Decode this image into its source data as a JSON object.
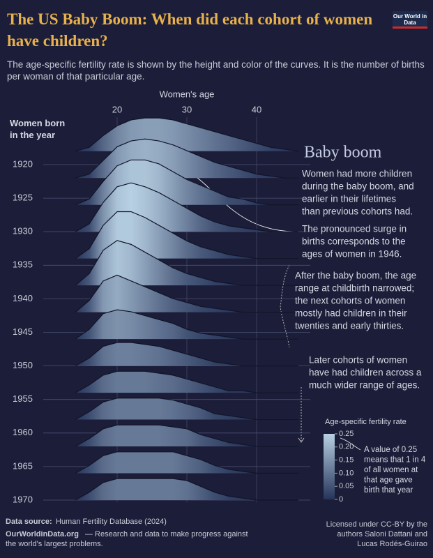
{
  "chart_data": {
    "type": "ridgeline",
    "title": "The US Baby Boom: When did each cohort of women have children?",
    "subtitle": "The age-specific fertility rate is shown by the height and color of the curves. It is the number of births per woman of that particular age.",
    "logo": "Our World in Data",
    "x_label": "Women's age",
    "y_label": "Women born in the year",
    "x": [
      14,
      16,
      18,
      20,
      22,
      24,
      26,
      28,
      30,
      32,
      34,
      36,
      38,
      40,
      42,
      44,
      46
    ],
    "xlim": [
      10,
      46
    ],
    "xticks": [
      20,
      30,
      40
    ],
    "ylim": [
      1920,
      1970
    ],
    "yticks": [
      1920,
      1925,
      1930,
      1935,
      1940,
      1945,
      1950,
      1955,
      1960,
      1965,
      1970
    ],
    "series": [
      {
        "cohort": 1918,
        "values": [
          0,
          0.02,
          0.08,
          0.13,
          0.16,
          0.17,
          0.17,
          0.16,
          0.14,
          0.12,
          0.1,
          0.08,
          0.06,
          0.04,
          0.02,
          0.01,
          0
        ]
      },
      {
        "cohort": 1922,
        "values": [
          0,
          0.02,
          0.09,
          0.16,
          0.19,
          0.2,
          0.19,
          0.17,
          0.14,
          0.11,
          0.08,
          0.06,
          0.04,
          0.02,
          0.01,
          0,
          0
        ]
      },
      {
        "cohort": 1926,
        "values": [
          0,
          0.03,
          0.12,
          0.2,
          0.23,
          0.23,
          0.21,
          0.17,
          0.13,
          0.1,
          0.07,
          0.04,
          0.03,
          0.01,
          0,
          0,
          0
        ]
      },
      {
        "cohort": 1930,
        "values": [
          0,
          0.04,
          0.15,
          0.23,
          0.25,
          0.23,
          0.2,
          0.16,
          0.12,
          0.08,
          0.05,
          0.03,
          0.02,
          0.01,
          0,
          0,
          0
        ]
      },
      {
        "cohort": 1934,
        "values": [
          0,
          0.05,
          0.17,
          0.24,
          0.24,
          0.21,
          0.17,
          0.13,
          0.09,
          0.06,
          0.04,
          0.02,
          0.01,
          0,
          0,
          0,
          0
        ]
      },
      {
        "cohort": 1938,
        "values": [
          0,
          0.06,
          0.18,
          0.23,
          0.21,
          0.17,
          0.13,
          0.09,
          0.06,
          0.04,
          0.02,
          0.01,
          0,
          0,
          0,
          0,
          0
        ]
      },
      {
        "cohort": 1942,
        "values": [
          0,
          0.06,
          0.16,
          0.19,
          0.16,
          0.13,
          0.1,
          0.07,
          0.05,
          0.03,
          0.02,
          0.01,
          0,
          0,
          0,
          0,
          0
        ]
      },
      {
        "cohort": 1946,
        "values": [
          0,
          0.05,
          0.13,
          0.15,
          0.14,
          0.12,
          0.1,
          0.08,
          0.05,
          0.03,
          0.02,
          0.01,
          0,
          0,
          0,
          0,
          0
        ]
      },
      {
        "cohort": 1950,
        "values": [
          0,
          0.04,
          0.1,
          0.12,
          0.12,
          0.11,
          0.1,
          0.08,
          0.06,
          0.04,
          0.02,
          0.01,
          0,
          0,
          0,
          0,
          0
        ]
      },
      {
        "cohort": 1954,
        "values": [
          0,
          0.04,
          0.09,
          0.11,
          0.11,
          0.11,
          0.1,
          0.09,
          0.07,
          0.05,
          0.03,
          0.01,
          0.01,
          0,
          0,
          0,
          0
        ]
      },
      {
        "cohort": 1958,
        "values": [
          0,
          0.04,
          0.09,
          0.11,
          0.11,
          0.11,
          0.11,
          0.1,
          0.08,
          0.06,
          0.03,
          0.02,
          0.01,
          0,
          0,
          0,
          0
        ]
      },
      {
        "cohort": 1962,
        "values": [
          0,
          0.04,
          0.09,
          0.11,
          0.11,
          0.11,
          0.11,
          0.1,
          0.09,
          0.06,
          0.04,
          0.02,
          0.01,
          0,
          0,
          0,
          0
        ]
      },
      {
        "cohort": 1966,
        "values": [
          0,
          0.04,
          0.09,
          0.11,
          0.11,
          0.11,
          0.11,
          0.11,
          0.09,
          0.07,
          0.04,
          0.02,
          0.01,
          0,
          0,
          0,
          0
        ]
      },
      {
        "cohort": 1970,
        "values": [
          0,
          0.04,
          0.09,
          0.11,
          0.11,
          0.11,
          0.11,
          0.11,
          0.1,
          0.07,
          0.04,
          0.02,
          0.01,
          0,
          0,
          0,
          0
        ]
      }
    ],
    "colorscale": [
      "#26345a",
      "#b8d0e3"
    ],
    "colorbar_title": "Age-specific fertility rate",
    "colorbar_lim": [
      0,
      0.25
    ],
    "colorbar_ticks": [
      0,
      0.05,
      {
        "value": 0.1,
        "label": "0.10"
      },
      0.15,
      {
        "value": 0.2,
        "label": "0.20"
      },
      0.25
    ],
    "colorbar_note": [
      "A value of 0.25",
      "means that 1 in 4",
      "of all women at",
      "that age gave",
      "birth that year"
    ],
    "annotations": {
      "heading": "Baby boom",
      "boom": [
        "Women had more children",
        "during the baby boom, and",
        "earlier in their lifetimes",
        "than previous cohorts had."
      ],
      "surge": [
        "The pronounced surge in",
        "births corresponds to the",
        "ages of women in 1946."
      ],
      "after": [
        "After the baby boom, the age",
        "range at childbirth narrowed;",
        "the next cohorts of women",
        "mostly had children in their",
        "twenties and early thirties."
      ],
      "later": [
        "Later cohorts of women",
        "have had children across a",
        "much wider range of ages."
      ]
    },
    "footer": {
      "source_label": "Data source:",
      "source": "Human Fertility Database (2024)",
      "site": "OurWorldinData.org",
      "tagline": [
        "— Research and data to make progress against",
        "the world's largest problems."
      ],
      "license": [
        "Licensed under CC-BY by the",
        "authors Saloni Dattani and",
        "Lucas Rodés-Guirao"
      ]
    }
  }
}
